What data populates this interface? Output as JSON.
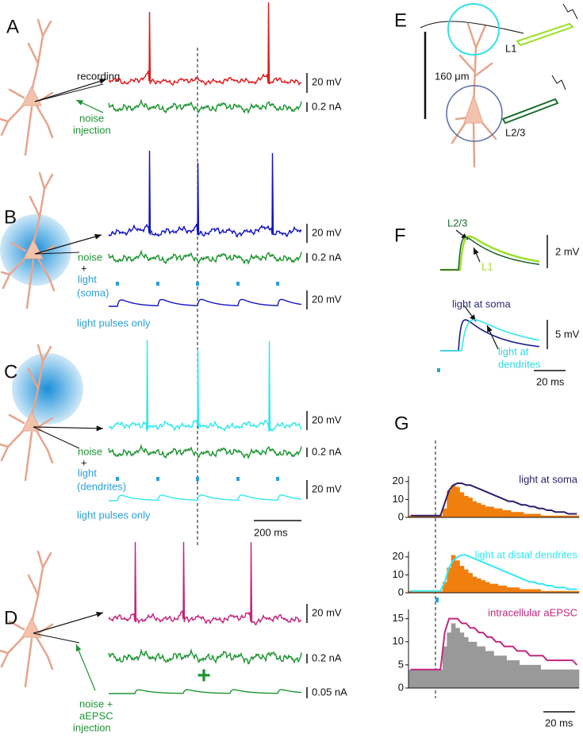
{
  "panels": {
    "A": {
      "letter": "A",
      "recording": "recording",
      "noise": "noise",
      "injection": "injection",
      "scale_voltage": "20 mV",
      "scale_current": "0.2 nA"
    },
    "B": {
      "letter": "B",
      "noise": "noise",
      "plus": "+",
      "light": "light",
      "location": "(soma)",
      "scale_voltage": "20 mV",
      "scale_current": "0.2 nA",
      "scale_pulse": "20 mV",
      "pulses_only": "light pulses only"
    },
    "C": {
      "letter": "C",
      "noise": "noise",
      "plus": "+",
      "light": "light",
      "location": "(dendrites)",
      "scale_voltage": "20 mV",
      "scale_current": "0.2 nA",
      "scale_pulse": "20 mV",
      "pulses_only": "light pulses only",
      "scale_time": "200 ms"
    },
    "D": {
      "letter": "D",
      "scale_voltage": "20 mV",
      "scale_current": "0.2 nA",
      "plus": "+",
      "scale_aepsc": "0.05 nA",
      "noise_plus": "noise +",
      "aepsc": "aEPSC",
      "injection": "injection"
    },
    "E": {
      "letter": "E",
      "l1": "L1",
      "scale_length": "160 μm",
      "l23": "L2/3"
    },
    "F": {
      "letter": "F",
      "l23": "L2/3",
      "l1": "L1",
      "scale_top": "2 mV",
      "light_soma": "light at soma",
      "scale_bottom": "5 mV",
      "light_at": "light at",
      "dendrites": "dendrites",
      "scale_time": "20 ms"
    },
    "G": {
      "letter": "G",
      "scale_time": "20 ms",
      "histograms": [
        {
          "title": "light at soma",
          "ylim": [
            0,
            23
          ],
          "yticks": [
            0,
            10,
            20
          ],
          "bar_color": "#f07f0e",
          "line_color": "#2a1f6b",
          "values": [
            1,
            1,
            1,
            1,
            1,
            1,
            1,
            1,
            5,
            15,
            18,
            17,
            14,
            12,
            11,
            9,
            8,
            7,
            6,
            6,
            5,
            5,
            4,
            4,
            3,
            3,
            3,
            2,
            2,
            2,
            2,
            1,
            1,
            1,
            1,
            1,
            1,
            1,
            1,
            1
          ],
          "line": [
            1,
            1,
            1,
            1,
            1,
            1,
            1,
            1,
            8,
            15,
            18,
            19,
            19,
            18,
            18,
            17,
            16,
            15,
            14,
            13,
            12,
            11,
            10,
            9,
            9,
            8,
            7,
            7,
            6,
            6,
            5,
            5,
            4,
            4,
            3,
            3,
            3,
            2,
            2,
            2
          ]
        },
        {
          "title": "light at distal dendrites",
          "ylim": [
            0,
            23
          ],
          "yticks": [
            0,
            10,
            20
          ],
          "bar_color": "#f07f0e",
          "line_color": "#33e8ee",
          "values": [
            1,
            1,
            1,
            1,
            1,
            1,
            1,
            1,
            6,
            14,
            21,
            18,
            15,
            13,
            11,
            9,
            8,
            7,
            6,
            5,
            5,
            4,
            4,
            3,
            3,
            3,
            2,
            2,
            2,
            2,
            2,
            1,
            1,
            1,
            1,
            1,
            1,
            1,
            1,
            1
          ],
          "line": [
            1,
            1,
            1,
            1,
            1,
            1,
            1,
            1,
            6,
            14,
            18,
            20,
            21,
            21,
            20,
            19,
            18,
            17,
            16,
            15,
            14,
            13,
            12,
            11,
            10,
            9,
            8,
            7,
            6,
            6,
            5,
            5,
            4,
            4,
            3,
            3,
            3,
            2,
            2,
            2
          ]
        },
        {
          "title": "intracellular aEPSC",
          "ylim": [
            0,
            17
          ],
          "yticks": [
            0,
            5,
            10,
            15
          ],
          "bar_color": "#999999",
          "line_color": "#c0267e",
          "values": [
            4,
            4,
            4,
            4,
            4,
            4,
            4,
            4,
            9,
            12,
            14,
            13,
            12,
            11,
            10,
            10,
            9,
            9,
            8,
            8,
            7,
            7,
            7,
            6,
            6,
            6,
            5,
            5,
            5,
            5,
            5,
            4,
            4,
            4,
            4,
            4,
            4,
            4,
            4,
            4
          ],
          "line": [
            4,
            4,
            4,
            4,
            4,
            4,
            4,
            4,
            12,
            15,
            15,
            15,
            14,
            14,
            13,
            13,
            12,
            12,
            11,
            11,
            10,
            10,
            9,
            9,
            9,
            8,
            8,
            8,
            7,
            7,
            7,
            7,
            6,
            6,
            6,
            6,
            6,
            6,
            6,
            5
          ]
        }
      ]
    }
  }
}
